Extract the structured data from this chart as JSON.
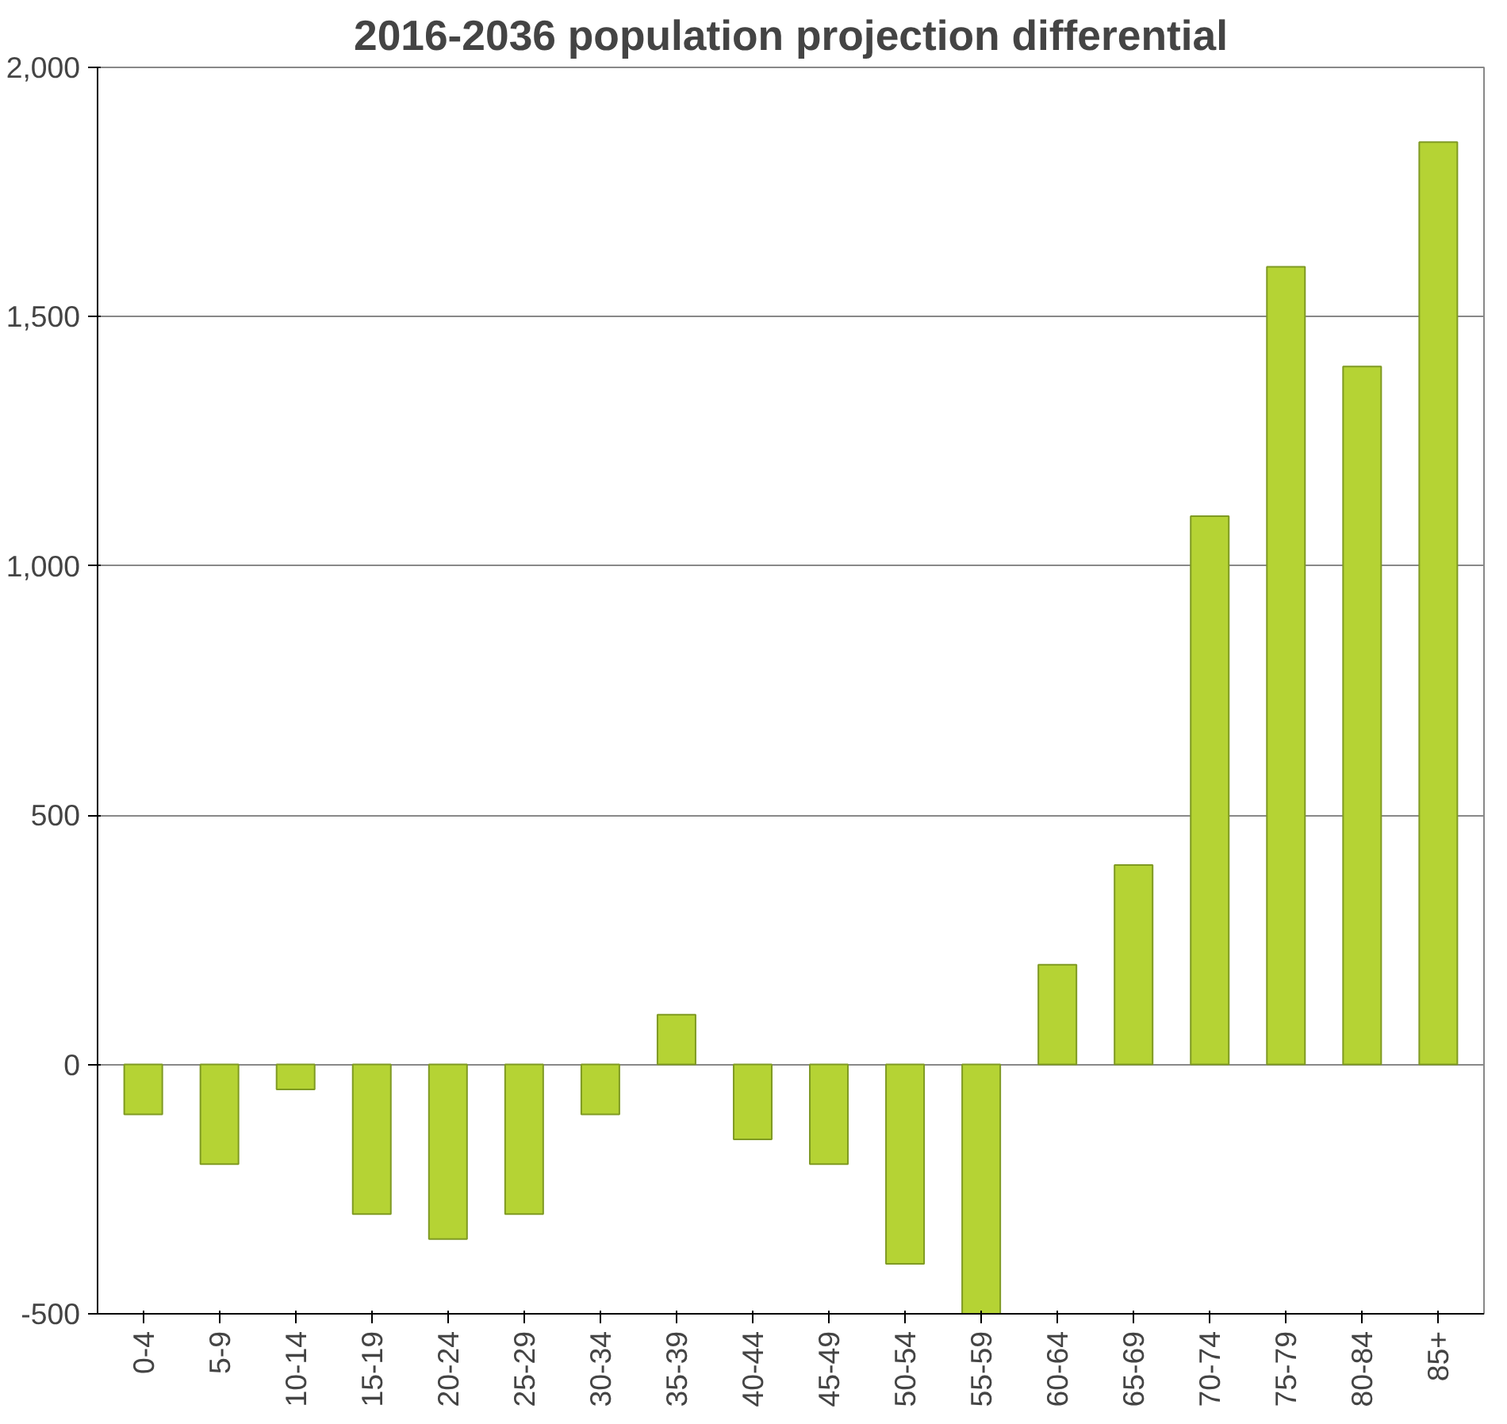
{
  "chart_data": {
    "type": "bar",
    "title": "2016-2036 population projection differential",
    "categories": [
      "0-4",
      "5-9",
      "10-14",
      "15-19",
      "20-24",
      "25-29",
      "30-34",
      "35-39",
      "40-44",
      "45-49",
      "50-54",
      "55-59",
      "60-64",
      "65-69",
      "70-74",
      "75-79",
      "80-84",
      "85+"
    ],
    "values": [
      -100,
      -200,
      -50,
      -300,
      -350,
      -300,
      -100,
      100,
      -150,
      -200,
      -400,
      -500,
      200,
      400,
      1100,
      1600,
      1400,
      1850
    ],
    "color": "#b5d334",
    "ylim": [
      -500,
      2000
    ],
    "yticks": [
      {
        "value": -500,
        "label": "-500"
      },
      0,
      {
        "value": 500,
        "label": "500"
      },
      {
        "value": 1000,
        "label": "1,000"
      },
      {
        "value": 1500,
        "label": "1,500"
      },
      {
        "value": 2000,
        "label": "2,000"
      }
    ],
    "grid": "y"
  }
}
